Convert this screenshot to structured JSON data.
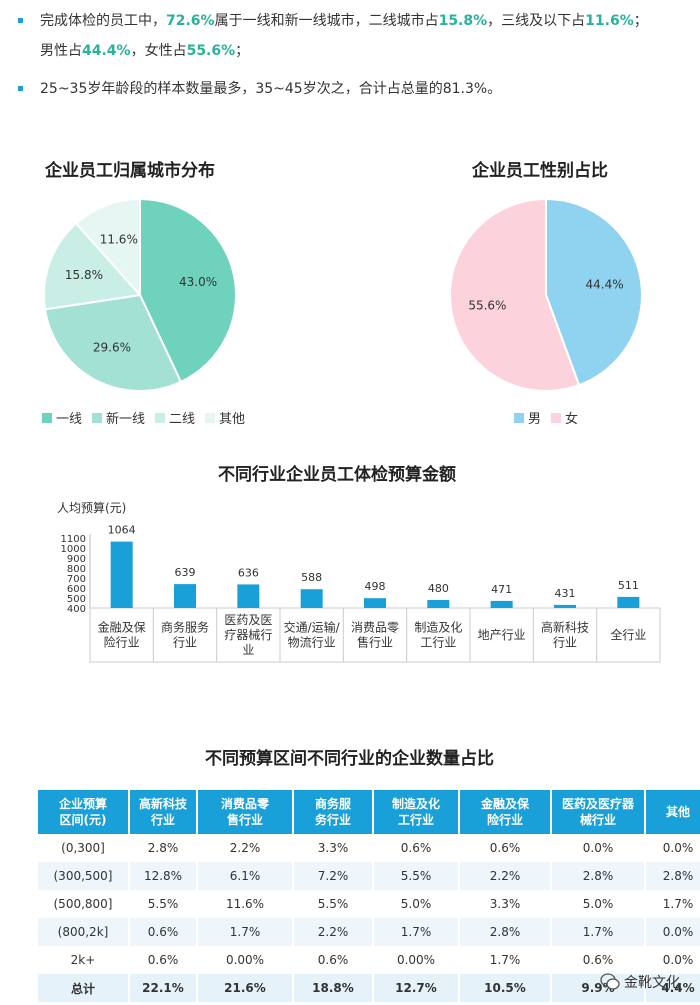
{
  "intro": {
    "line1_a": "完成体检的员工中，",
    "line1_b": "72.6%",
    "line1_c": "属于一线和新一线城市，二线城市占",
    "line1_d": "15.8%",
    "line1_e": "，三线及以下占",
    "line1_f": "11.6%",
    "line1_g": "；",
    "line2_a": "男性占",
    "line2_b": "44.4%",
    "line2_c": "，女性占",
    "line2_d": "55.6%",
    "line2_e": "；",
    "line3": "25~35岁年龄段的样本数量最多，35~45岁次之，合计占总量的81.3%。"
  },
  "colors": {
    "accent": "#1aa0d8",
    "highlight": "#29b39a",
    "tier1": "#6fd2bd",
    "newTier1": "#a2e1d4",
    "tier2": "#c8eee6",
    "other": "#e6f7f3",
    "male": "#8fd3f1",
    "female": "#fcd3dc",
    "bar": "#1aa0d8"
  },
  "chart_data": [
    {
      "type": "pie",
      "title": "企业员工归属城市分布",
      "labels": [
        "一线",
        "新一线",
        "二线",
        "其他"
      ],
      "values": [
        43.0,
        29.6,
        15.8,
        11.6
      ],
      "value_labels": [
        "43.0%",
        "29.6%",
        "15.8%",
        "11.6%"
      ],
      "legend": "bottom"
    },
    {
      "type": "pie",
      "title": "企业员工性别占比",
      "labels": [
        "男",
        "女"
      ],
      "values": [
        44.4,
        55.6
      ],
      "value_labels": [
        "44.4%",
        "55.6%"
      ],
      "legend": "bottom"
    },
    {
      "type": "bar",
      "title": "不同行业企业员工体检预算金额",
      "ylabel": "人均预算(元)",
      "categories": [
        "金融及保\n险行业",
        "商务服务\n行业",
        "医药及医\n疗器械行\n业",
        "交通/运输/\n物流行业",
        "消费品零\n售行业",
        "制造及化\n工行业",
        "地产行业",
        "高新科技\n行业",
        "全行业"
      ],
      "values": [
        1064,
        639,
        636,
        588,
        498,
        480,
        471,
        431,
        511
      ],
      "ylim": [
        400,
        1100
      ],
      "yticks": [
        400,
        500,
        600,
        700,
        800,
        900,
        1000,
        1100
      ]
    },
    {
      "type": "table",
      "title": "不同预算区间不同行业的企业数量占比",
      "columns": [
        "企业预算\n区间(元)",
        "高新科技\n行业",
        "消费品零\n售行业",
        "商务服\n务行业",
        "制造及化\n工行业",
        "金融及保\n险行业",
        "医药及医疗器\n械行业",
        "其他"
      ],
      "rows": [
        [
          "(0,300]",
          "2.8%",
          "2.2%",
          "3.3%",
          "0.6%",
          "0.6%",
          "0.0%",
          "0.0%"
        ],
        [
          "(300,500]",
          "12.8%",
          "6.1%",
          "7.2%",
          "5.5%",
          "2.2%",
          "2.8%",
          "2.8%"
        ],
        [
          "(500,800]",
          "5.5%",
          "11.6%",
          "5.5%",
          "5.0%",
          "3.3%",
          "5.0%",
          "1.7%"
        ],
        [
          "(800,2k]",
          "0.6%",
          "1.7%",
          "2.2%",
          "1.7%",
          "2.8%",
          "1.7%",
          "0.0%"
        ],
        [
          "2k+",
          "0.6%",
          "0.00%",
          "0.6%",
          "0.00%",
          "1.7%",
          "0.6%",
          "0.0%"
        ],
        [
          "总计",
          "22.1%",
          "21.6%",
          "18.8%",
          "12.7%",
          "10.5%",
          "9.9%",
          "4.4%"
        ]
      ]
    }
  ],
  "watermark": "金靴文化"
}
